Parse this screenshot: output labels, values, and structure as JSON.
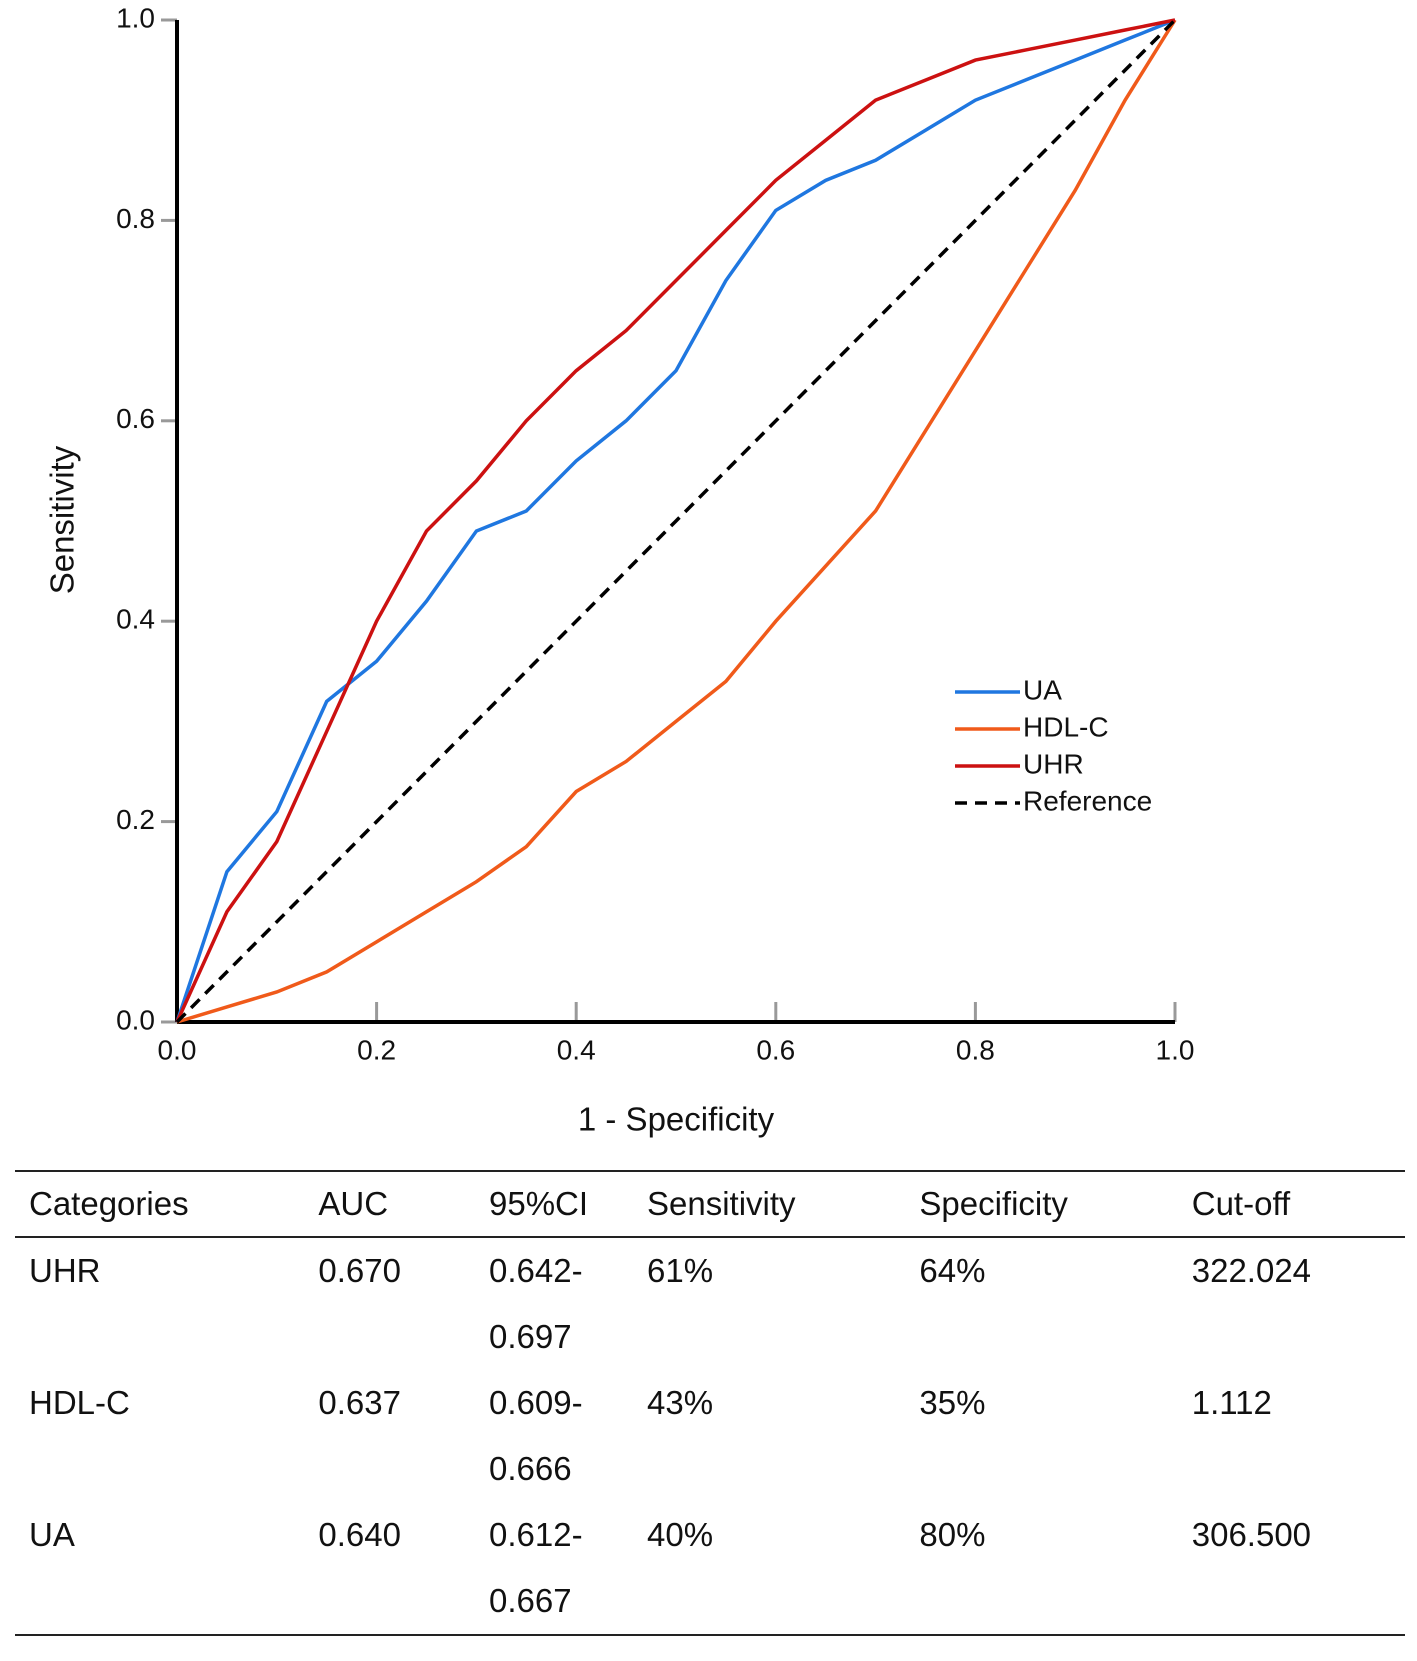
{
  "chart_data": {
    "type": "line",
    "xlabel": "1 - Specificity",
    "ylabel": "Sensitivity",
    "x": [
      0,
      0.05,
      0.1,
      0.15,
      0.2,
      0.25,
      0.3,
      0.35,
      0.4,
      0.45,
      0.5,
      0.55,
      0.6,
      0.65,
      0.7,
      0.75,
      0.8,
      0.85,
      0.9,
      0.95,
      1
    ],
    "series": [
      {
        "name": "UA",
        "color": "#1f77e0",
        "values": [
          0,
          0.15,
          0.21,
          0.32,
          0.36,
          0.42,
          0.49,
          0.51,
          0.56,
          0.6,
          0.65,
          0.74,
          0.81,
          0.84,
          0.86,
          0.89,
          0.92,
          0.94,
          0.96,
          0.98,
          1
        ]
      },
      {
        "name": "HDL-C",
        "color": "#f05a1a",
        "values": [
          0,
          0.015,
          0.03,
          0.05,
          0.08,
          0.11,
          0.14,
          0.175,
          0.23,
          0.26,
          0.3,
          0.34,
          0.4,
          0.455,
          0.51,
          0.59,
          0.67,
          0.75,
          0.83,
          0.92,
          1
        ]
      },
      {
        "name": "UHR",
        "color": "#cc1111",
        "values": [
          0,
          0.11,
          0.18,
          0.29,
          0.4,
          0.49,
          0.54,
          0.6,
          0.65,
          0.69,
          0.74,
          0.79,
          0.84,
          0.88,
          0.92,
          0.94,
          0.96,
          0.97,
          0.98,
          0.99,
          1
        ]
      },
      {
        "name": "Reference",
        "color": "#000000",
        "dashed": true,
        "values": [
          0,
          0.05,
          0.1,
          0.15,
          0.2,
          0.25,
          0.3,
          0.35,
          0.4,
          0.45,
          0.5,
          0.55,
          0.6,
          0.65,
          0.7,
          0.75,
          0.8,
          0.85,
          0.9,
          0.95,
          1
        ]
      }
    ],
    "xlim": [
      0,
      1
    ],
    "ylim": [
      0,
      1
    ],
    "xticks": [
      {
        "value": 0,
        "label": "0.0"
      },
      0.2,
      0.4,
      0.6,
      0.8,
      {
        "value": 1,
        "label": "1.0"
      }
    ],
    "yticks": [
      {
        "value": 0,
        "label": "0.0"
      },
      0.2,
      0.4,
      0.6,
      0.8,
      {
        "value": 1,
        "label": "1.0"
      }
    ],
    "legend": "lower right"
  },
  "table": {
    "header": [
      "Categories",
      "AUC",
      "95%CI",
      "Sensitivity",
      "Specificity",
      "Cut-off"
    ],
    "rows": [
      [
        "UHR",
        "0.670",
        "0.642-0.697",
        "61%",
        "64%",
        "322.024"
      ],
      [
        "HDL-C",
        "0.637",
        "0.609-0.666",
        "43%",
        "35%",
        "1.112"
      ],
      [
        "UA",
        "0.640",
        "0.612-0.667",
        "40%",
        "80%",
        "306.500"
      ]
    ]
  }
}
